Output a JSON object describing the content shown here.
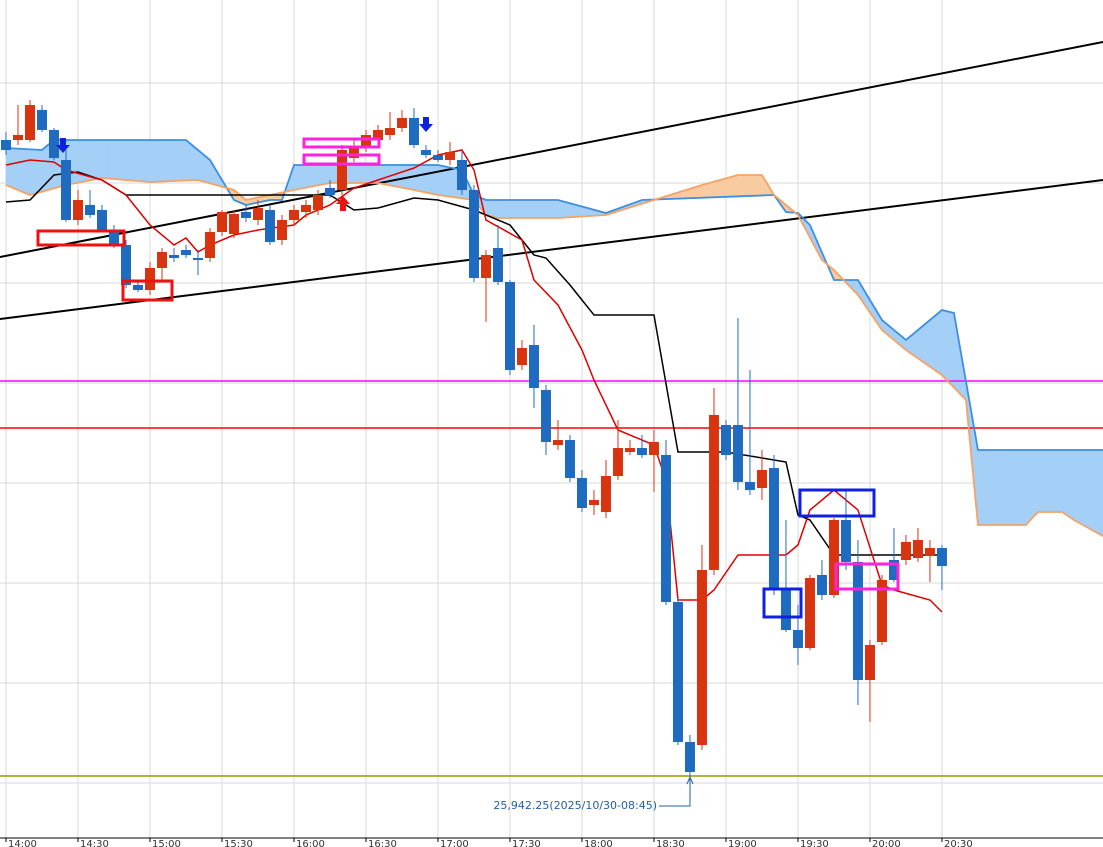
{
  "chart_data": {
    "type": "candlestick",
    "annotation": "25,942.25(2025/10/30-08:45)",
    "categories": [
      "14:00",
      null,
      null,
      null,
      null,
      null,
      "14:30",
      null,
      null,
      null,
      null,
      null,
      "15:00",
      null,
      null,
      null,
      null,
      null,
      "15:30",
      null,
      null,
      null,
      null,
      null,
      "16:00",
      null,
      null,
      null,
      null,
      null,
      "16:30",
      null,
      null,
      null,
      null,
      null,
      "17:00",
      null,
      null,
      null,
      null,
      null,
      "17:30",
      null,
      null,
      null,
      null,
      null,
      "18:00",
      null,
      null,
      null,
      null,
      null,
      "18:30",
      null,
      null,
      null,
      null,
      null,
      "19:00",
      null,
      null,
      null,
      null,
      null,
      "19:30",
      null,
      null,
      null,
      null,
      null,
      "20:00",
      null,
      null,
      null,
      null,
      null,
      "20:30"
    ],
    "open": [
      26260.25,
      26260.25,
      26260.25,
      26275.25,
      26265.25,
      26250.25,
      26220.25,
      26227.75,
      26225.25,
      26215.25,
      26207.75,
      26187.75,
      26185.25,
      26196.25,
      26202.75,
      26205.25,
      26201.25,
      26201.25,
      26214.25,
      26213.25,
      26224.25,
      26220.25,
      26225.25,
      26210.25,
      26220.25,
      26224.25,
      26225.25,
      26236.25,
      26235.25,
      26251.25,
      26256.25,
      26260.25,
      26262.75,
      26266.25,
      26271.25,
      26255.25,
      26252.75,
      26250.25,
      26250.25,
      26235.25,
      26191.25,
      26206.25,
      26189.25,
      26147.75,
      26157.75,
      26135.25,
      26107.75,
      26110.25,
      26091.25,
      26077.75,
      26074.25,
      26092.25,
      26104.25,
      26106.25,
      26102.75,
      26102.75,
      26029.25,
      25959.25,
      25957.75,
      26045.25,
      26117.75,
      26117.75,
      26089.25,
      26086.25,
      26096.25,
      26035.25,
      26015.25,
      26006.25,
      26042.75,
      26032.75,
      26070.25,
      26049.25,
      25990.25,
      26009.25,
      26050.25,
      26050.25,
      26051.25,
      26052.25,
      26056.25
    ],
    "high": [
      26264.25,
      26277.75,
      26280.25,
      26277.75,
      26266.25,
      26255.25,
      26235.25,
      26235.25,
      26227.75,
      26217.75,
      26210.25,
      26190.25,
      26199.25,
      26206.25,
      26206.25,
      26207.75,
      26205.25,
      26216.25,
      26225.25,
      26225.25,
      26227.75,
      26230.25,
      26227.75,
      26222.75,
      26227.75,
      26230.25,
      26235.25,
      26240.25,
      26257.75,
      26260.25,
      26265.25,
      26267.75,
      26274.25,
      26275.25,
      26276.25,
      26257.75,
      26255.25,
      26259.25,
      26255.25,
      26237.75,
      26205.25,
      26217.75,
      26190.25,
      26160.25,
      26167.75,
      26137.75,
      26120.25,
      26112.75,
      26095.25,
      26085.25,
      26100.25,
      26120.25,
      26110.25,
      26112.75,
      26115.25,
      26110.25,
      26031.25,
      25962.75,
      26057.75,
      26136.25,
      26120.25,
      26171.25,
      26145.25,
      26105.25,
      26102.75,
      26070.25,
      26027.75,
      26042.75,
      26050.25,
      26071.25,
      26085.25,
      26060.25,
      26010.25,
      26042.75,
      26066.25,
      26062.75,
      26066.25,
      26060.25,
      26057.75
    ],
    "low": [
      26252.75,
      26257.75,
      26259.25,
      26264.25,
      26250.25,
      26219.25,
      26217.75,
      26221.25,
      26214.25,
      26206.25,
      26186.25,
      26184.25,
      26182.75,
      26190.25,
      26199.25,
      26201.25,
      26192.75,
      26199.25,
      26212.25,
      26211.25,
      26219.25,
      26217.75,
      26207.75,
      26207.75,
      26217.75,
      26221.25,
      26222.75,
      26231.25,
      26232.75,
      26249.25,
      26254.25,
      26257.75,
      26260.25,
      26264.25,
      26256.25,
      26251.25,
      26249.25,
      26247.75,
      26232.75,
      26189.25,
      26169.25,
      26187.75,
      26142.75,
      26145.25,
      26126.25,
      26102.75,
      26105.25,
      26089.25,
      26074.25,
      26072.75,
      26071.25,
      26090.25,
      26102.75,
      26101.25,
      26084.25,
      26027.75,
      25957.75,
      25942.25,
      25955.25,
      26042.75,
      26100.25,
      26085.25,
      26082.75,
      26080.25,
      26032.75,
      26014.25,
      25997.75,
      26005.25,
      26030.25,
      26031.25,
      26045.25,
      25977.75,
      25969.25,
      26007.75,
      26039.25,
      26047.75,
      26049.25,
      26039.25,
      26035.25
    ],
    "close": [
      26255.25,
      26262.75,
      26277.75,
      26265.25,
      26251.25,
      26220.25,
      26230.25,
      26222.75,
      26215.25,
      26207.75,
      26187.75,
      26185.25,
      26196.25,
      26204.25,
      26201.25,
      26202.75,
      26200.25,
      26214.25,
      26224.25,
      26223.25,
      26221.25,
      26226.25,
      26209.25,
      26220.25,
      26225.25,
      26227.75,
      26232.75,
      26232.75,
      26255.25,
      26256.25,
      26262.75,
      26265.25,
      26266.25,
      26271.25,
      26257.75,
      26252.75,
      26250.25,
      26254.25,
      26235.25,
      26191.25,
      26202.75,
      26189.25,
      26145.25,
      26156.25,
      26136.25,
      26109.25,
      26110.25,
      26091.25,
      26076.25,
      26080.25,
      26092.25,
      26106.25,
      26106.25,
      26102.75,
      26109.25,
      26029.25,
      25959.25,
      25944.25,
      26045.25,
      26122.75,
      26102.75,
      26089.25,
      26085.25,
      26095.25,
      26035.25,
      26015.25,
      26006.25,
      26041.25,
      26032.75,
      26070.25,
      26049.25,
      25990.25,
      26007.75,
      26040.25,
      26040.25,
      26059.25,
      26060.25,
      26056.25,
      26047.25
    ],
    "up_color": "#d8340f",
    "down_color": "#1f6bc0",
    "xlim": [
      -0.5,
      91.42
    ],
    "ylim": [
      25911.25,
      26330.25
    ],
    "grid": true,
    "ygrid": [
      26288.75,
      26238.75,
      26188.75,
      26138.75,
      26088.75,
      26038.75,
      25988.75,
      25938.75
    ],
    "overlays": [
      {
        "color": "#3d8fe0",
        "x": [
          0,
          3,
          4,
          6,
          15,
          17,
          19,
          20,
          22,
          23,
          24,
          36,
          38,
          39,
          40,
          46,
          50,
          53,
          64,
          65,
          66,
          67,
          69,
          71,
          73,
          75,
          78,
          79,
          81,
          92
        ],
        "values": [
          26256.25,
          26255.25,
          26260.25,
          26260.25,
          26260.25,
          26250.25,
          26230.25,
          26227.75,
          26230.25,
          26230.25,
          26247.75,
          26247.75,
          26245.25,
          26232.75,
          26230.25,
          26230.25,
          26223.75,
          26230.25,
          26232.75,
          26224.25,
          26223.75,
          26217.75,
          26190.25,
          26190.25,
          26170.25,
          26160.25,
          26175.25,
          26173.75,
          26105.25,
          26105.25
        ]
      },
      {
        "color": "#f4a366",
        "x": [
          0,
          2,
          5,
          8,
          12,
          16,
          19,
          20,
          24,
          27,
          31,
          34,
          36,
          39,
          40,
          41,
          46,
          50,
          54,
          58,
          61,
          63,
          64,
          66,
          68,
          69,
          71,
          73,
          75,
          78,
          80,
          81,
          85,
          86,
          88,
          89,
          92
        ],
        "values": [
          26237.75,
          26232.75,
          26237.75,
          26241.25,
          26239.25,
          26240.25,
          26235.25,
          26230.25,
          26235.25,
          26238.75,
          26238.75,
          26235.25,
          26232.75,
          26230.25,
          26222.75,
          26221.25,
          26221.25,
          26222.75,
          26230.25,
          26237.75,
          26242.75,
          26242.75,
          26232.75,
          26222.75,
          26200.25,
          26195.25,
          26182.75,
          26165.25,
          26155.25,
          26142.75,
          26130.25,
          26067.75,
          26067.75,
          26074.25,
          26074.25,
          26070.25,
          26060.25
        ]
      },
      {
        "color": "#000000",
        "x": [
          0,
          2,
          4,
          6,
          8,
          10,
          19,
          27,
          29,
          31,
          34,
          36,
          39,
          40,
          42,
          44,
          45,
          47,
          49,
          54,
          56,
          60,
          65,
          66,
          67,
          69,
          78
        ],
        "values": [
          26229.25,
          26230.25,
          26242.75,
          26244.25,
          26240.25,
          26232.75,
          26232.75,
          26232.75,
          26225.25,
          26226.25,
          26231.25,
          26230.25,
          26225.25,
          26222.75,
          26217.75,
          26202.75,
          26201.25,
          26187.75,
          26172.75,
          26172.75,
          26104.25,
          26104.25,
          26099.25,
          26072.75,
          26070.25,
          26052.75,
          26052.75
        ]
      },
      {
        "color": "#e00000",
        "x": [
          0,
          2,
          4,
          5,
          8,
          10,
          12,
          14,
          15,
          16,
          17,
          19,
          21,
          24,
          25,
          27,
          29,
          31,
          34,
          36,
          38,
          39,
          40,
          43,
          44,
          46,
          48,
          49,
          51,
          54,
          55,
          56,
          58,
          59,
          61,
          65,
          66,
          67,
          69,
          71,
          73,
          74,
          77,
          78
        ],
        "values": [
          26247.75,
          26250.25,
          26249.25,
          26245.25,
          26240.25,
          26232.75,
          26217.75,
          26207.75,
          26211.25,
          26204.25,
          26207.75,
          26212.75,
          26215.25,
          26217.75,
          26222.75,
          26227.75,
          26236.25,
          26240.25,
          26246.25,
          26252.75,
          26255.25,
          26245.25,
          26220.25,
          26210.25,
          26190.25,
          26177.75,
          26155.25,
          26140.25,
          26115.25,
          26107.75,
          26090.25,
          26030.25,
          26030.25,
          26035.25,
          26052.75,
          26052.75,
          26057.75,
          26075.25,
          26085.25,
          26075.25,
          26037.75,
          26035.25,
          26030.25,
          26024.25
        ]
      }
    ],
    "cloud_colors": [
      "#a4cff6",
      "#f9cba0"
    ],
    "trendlines": [
      {
        "color": "#000000",
        "x": [
          -0.5,
          91.42
        ],
        "values": [
          26201.75,
          26309.25
        ]
      },
      {
        "color": "#000000",
        "x": [
          -0.5,
          91.42
        ],
        "values": [
          26170.75,
          26240.25
        ]
      }
    ],
    "hlines": [
      {
        "value": 26139.75,
        "color": "#ff00ff"
      },
      {
        "value": 26116.25,
        "color": "#ff0000"
      },
      {
        "value": 25942.25,
        "color": "#999900"
      }
    ]
  }
}
